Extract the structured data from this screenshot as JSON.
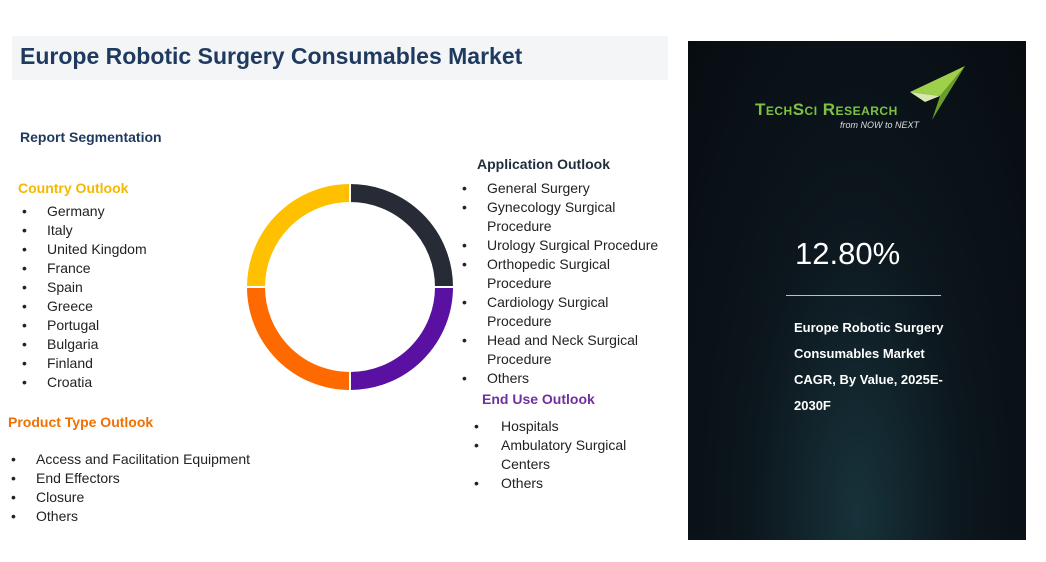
{
  "title": "Europe Robotic Surgery Consumables Market",
  "report_segmentation": "Report Segmentation",
  "country_outlook": {
    "title": "Country Outlook",
    "items": [
      "Germany",
      "Italy",
      "United Kingdom",
      "France",
      "Spain",
      "Greece",
      "Portugal",
      "Bulgaria",
      "Finland",
      "Croatia"
    ]
  },
  "product_type_outlook": {
    "title": "Product Type Outlook",
    "items": [
      "Access and Facilitation Equipment",
      "End Effectors",
      "Closure",
      "Others"
    ]
  },
  "application_outlook": {
    "title": "Application Outlook",
    "items": [
      "General Surgery",
      "Gynecology Surgical Procedure",
      "Urology Surgical Procedure",
      "Orthopedic Surgical Procedure",
      "Cardiology Surgical Procedure",
      "Head and Neck Surgical Procedure",
      "Others"
    ]
  },
  "end_use_outlook": {
    "title": "End Use Outlook",
    "items": [
      "Hospitals",
      "Ambulatory Surgical Centers",
      "Others"
    ]
  },
  "panel": {
    "brand": "TechSci Research",
    "tagline": "from NOW to NEXT",
    "cagr": "12.80%",
    "description": "Europe Robotic Surgery Consumables Market CAGR, By Value, 2025E-2030F"
  }
}
